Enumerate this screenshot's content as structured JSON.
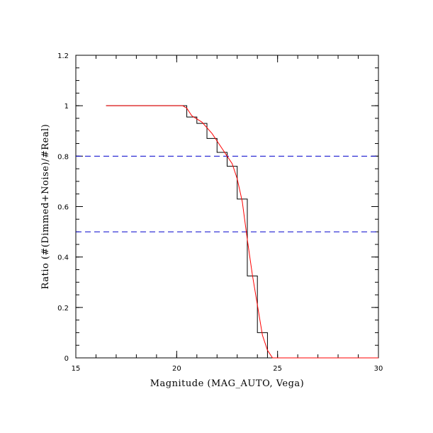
{
  "chart_data": {
    "type": "line",
    "title": "",
    "xlabel": "Magnitude (MAG_AUTO, Vega)",
    "ylabel": "Ratio (#(Dimmed+Noise)/#Real)",
    "xlim": [
      15,
      30
    ],
    "ylim": [
      0,
      1.2
    ],
    "xticks": [
      15,
      20,
      25,
      30
    ],
    "xtick_labels": [
      "15",
      "20",
      "25",
      "30"
    ],
    "yticks": [
      0,
      0.2,
      0.4,
      0.6,
      0.8,
      1,
      1.2
    ],
    "ytick_labels": [
      "0",
      "0.2",
      "0.4",
      "0.6",
      "0.8",
      "1",
      "1.2"
    ],
    "grid": false,
    "series": [
      {
        "style": "step",
        "color": "#000000",
        "x": [
          16.5,
          20.5,
          20.5,
          21.0,
          21.0,
          21.5,
          21.5,
          22.0,
          22.0,
          22.5,
          22.5,
          23.0,
          23.0,
          23.5,
          23.5,
          24.0,
          24.0,
          24.5,
          24.5
        ],
        "y": [
          1.0,
          1.0,
          0.955,
          0.955,
          0.93,
          0.93,
          0.87,
          0.87,
          0.815,
          0.815,
          0.76,
          0.76,
          0.63,
          0.63,
          0.325,
          0.325,
          0.1,
          0.1,
          0.0
        ]
      },
      {
        "style": "line",
        "color": "#ff0000",
        "x": [
          16.5,
          20.3,
          20.5,
          20.75,
          21.25,
          21.75,
          22.25,
          22.75,
          23.0,
          23.25,
          23.5,
          23.75,
          24.0,
          24.25,
          24.5,
          24.75,
          25.0,
          30.0
        ],
        "y": [
          1.0,
          1.0,
          0.99,
          0.96,
          0.935,
          0.89,
          0.83,
          0.77,
          0.71,
          0.62,
          0.47,
          0.33,
          0.21,
          0.09,
          0.03,
          0.0,
          0.0,
          0.0
        ]
      }
    ],
    "reference_lines": [
      {
        "y": 0.8,
        "color": "#0000cc",
        "style": "dashed"
      },
      {
        "y": 0.5,
        "color": "#0000cc",
        "style": "dashed"
      }
    ]
  }
}
